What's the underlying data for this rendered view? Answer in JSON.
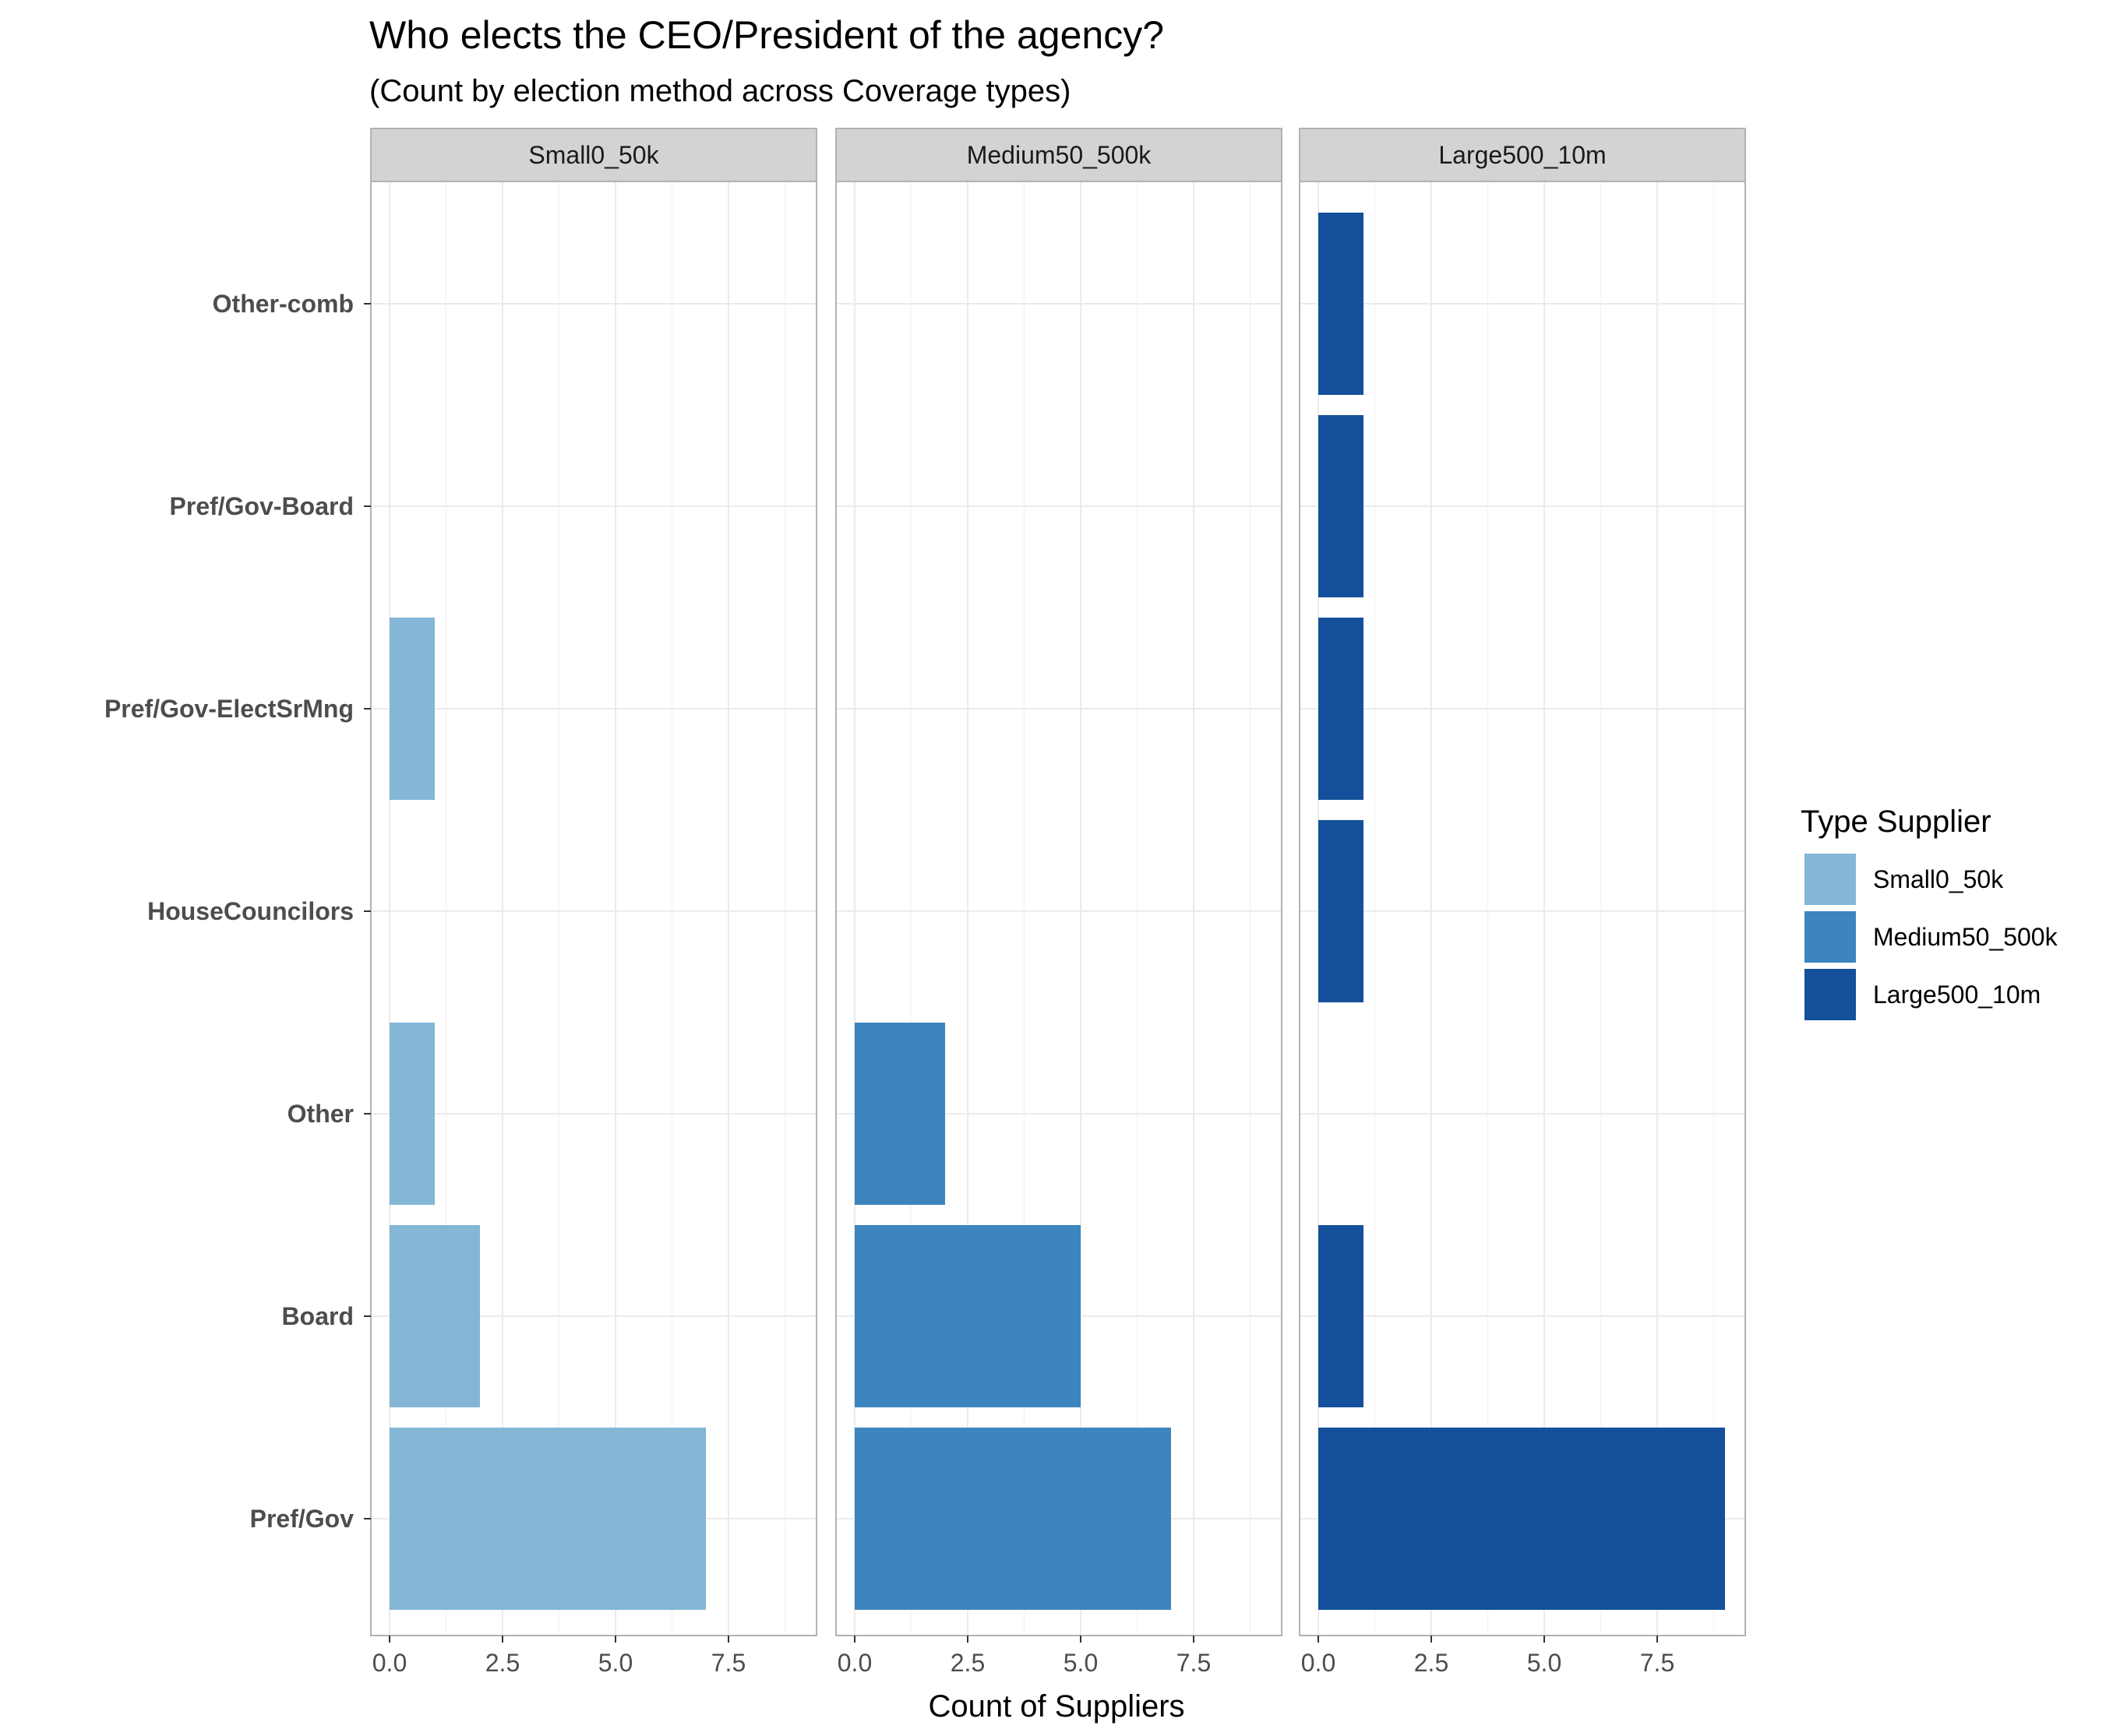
{
  "chart_data": {
    "type": "bar",
    "orientation": "horizontal",
    "title": "Who elects the CEO/President of the agency?",
    "subtitle": "(Count by election method across Coverage types)",
    "xlabel": "Count of Suppliers",
    "ylabel": "",
    "xlim": [
      0,
      9
    ],
    "x_ticks": [
      "0.0",
      "2.5",
      "5.0",
      "7.5"
    ],
    "x_tick_values": [
      0,
      2.5,
      5,
      7.5
    ],
    "grid": true,
    "legend": {
      "title": "Type Supplier",
      "placement": "right"
    },
    "categories": [
      "Other-comb",
      "Pref/Gov-Board",
      "Pref/Gov-ElectSrMng",
      "HouseCouncilors",
      "Other",
      "Board",
      "Pref/Gov"
    ],
    "panels": [
      "Small0_50k",
      "Medium50_500k",
      "Large500_10m"
    ],
    "series": [
      {
        "name": "Small0_50k",
        "color": "#84b6d6",
        "values": [
          0,
          0,
          1,
          0,
          1,
          2,
          7
        ]
      },
      {
        "name": "Medium50_500k",
        "color": "#3c85be",
        "values": [
          0,
          0,
          0,
          0,
          2,
          5,
          7
        ]
      },
      {
        "name": "Large500_10m",
        "color": "#14509b",
        "values": [
          1,
          1,
          1,
          1,
          0,
          1,
          9
        ]
      }
    ]
  }
}
